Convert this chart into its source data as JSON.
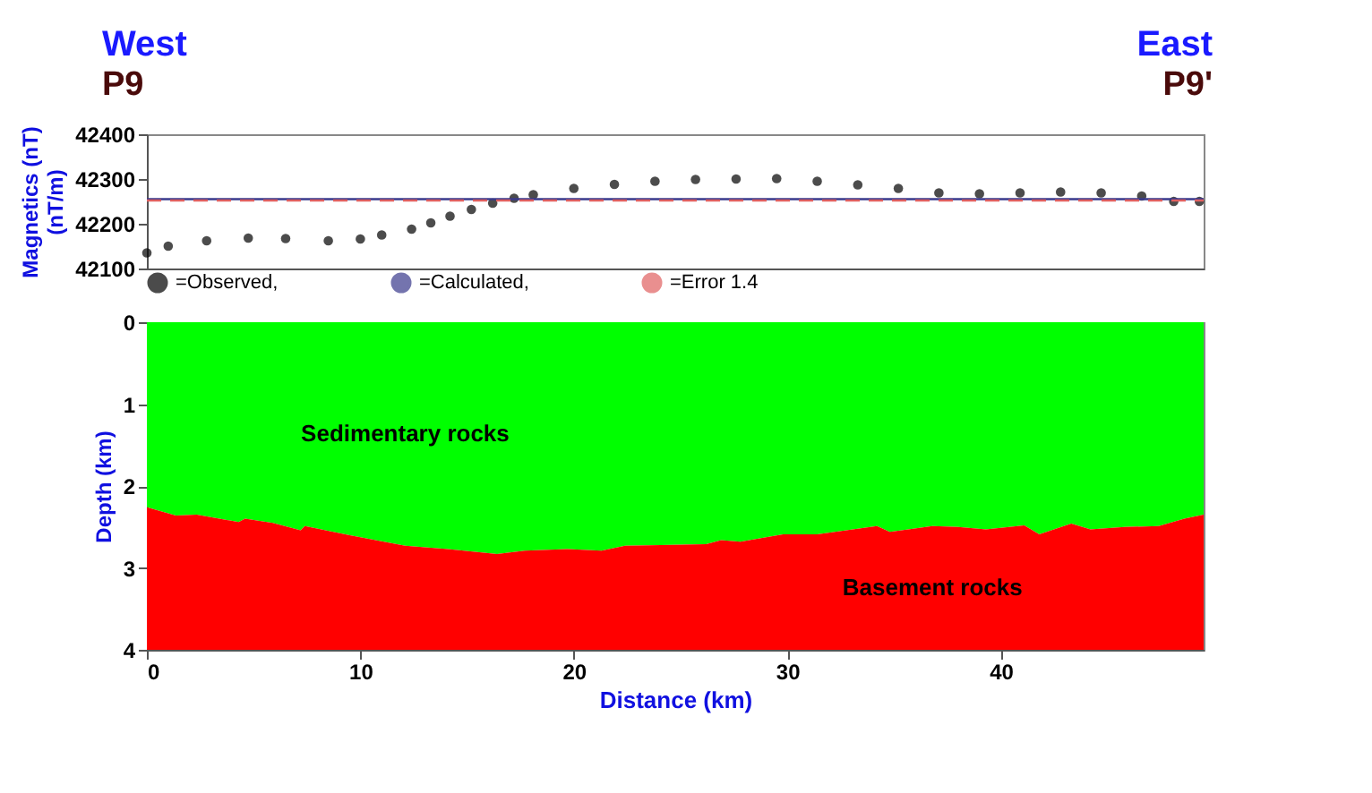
{
  "chart_data": [
    {
      "type": "scatter",
      "ylabel": "Magnetics (nT)\n(nT/m)",
      "annotations": [
        "West",
        "East",
        "P9",
        "P9'"
      ],
      "xlim": [
        0,
        49.5
      ],
      "ylim": [
        42100,
        42400
      ],
      "yticks": [
        42100,
        42200,
        42300,
        42400
      ],
      "tick_labels": "y",
      "grid": false,
      "legend": "bottom",
      "series": [
        {
          "name": "=Observed,",
          "type": "scatter",
          "marker": "circle",
          "color": "#000000",
          "x": [
            0,
            1,
            2.8,
            4.75,
            6.5,
            8.5,
            10,
            11,
            12.4,
            13.3,
            14.2,
            15.2,
            16.2,
            17.2,
            18.1,
            20,
            21.9,
            23.8,
            25.7,
            27.6,
            29.5,
            31.4,
            33.3,
            35.2,
            37.1,
            39,
            40.9,
            42.8,
            44.7,
            46.6,
            48.1,
            49.3
          ],
          "values": [
            42135,
            42150,
            42162,
            42168,
            42167,
            42162,
            42166,
            42175,
            42188,
            42202,
            42217,
            42232,
            42246,
            42257,
            42265,
            42279,
            42288,
            42295,
            42299,
            42300,
            42301,
            42295,
            42287,
            42279,
            42269,
            42267,
            42269,
            42271,
            42269,
            42262,
            42250,
            42250
          ]
        },
        {
          "name": "=Calculated,",
          "type": "line",
          "line_style": "solid",
          "color": "#3a3a8c",
          "x": [
            0,
            49.5
          ],
          "values": [
            42255,
            42255
          ]
        },
        {
          "name": "=Error 1.4",
          "type": "line",
          "line_style": "dashed",
          "color": "#e06060",
          "x": [
            0,
            49.5
          ],
          "values": [
            42252,
            42252
          ]
        }
      ]
    },
    {
      "type": "area",
      "stacked": true,
      "xlabel": "Distance (km)",
      "ylabel": "Depth (km)",
      "xlim": [
        0,
        49.5
      ],
      "xticks": [
        0,
        10,
        20,
        30,
        40
      ],
      "ylim": [
        4,
        0
      ],
      "yticks": [
        0,
        1,
        2,
        3,
        4
      ],
      "grid": false,
      "legend": false,
      "x": [
        0,
        1.36,
        2.34,
        4.3,
        4.6,
        5.9,
        7.2,
        7.4,
        9.5,
        12.1,
        14.1,
        16.4,
        17.7,
        19.7,
        21.3,
        22.4,
        26.2,
        26.9,
        27.8,
        29.8,
        31.4,
        34.2,
        34.8,
        36.8,
        38,
        39.3,
        41.1,
        41.8,
        43.3,
        44.2,
        45.8,
        47.4,
        48.6,
        49.5
      ],
      "series": [
        {
          "name": "Sedimentary rocks",
          "color": "#00ff00",
          "values": [
            2.26,
            2.36,
            2.35,
            2.44,
            2.4,
            2.45,
            2.54,
            2.49,
            2.6,
            2.73,
            2.77,
            2.83,
            2.79,
            2.77,
            2.79,
            2.73,
            2.71,
            2.66,
            2.68,
            2.59,
            2.59,
            2.49,
            2.56,
            2.49,
            2.5,
            2.53,
            2.48,
            2.59,
            2.46,
            2.53,
            2.5,
            2.49,
            2.4,
            2.35
          ]
        },
        {
          "name": "Basement rocks",
          "color": "#ff0000",
          "values": [
            1.74,
            1.64,
            1.65,
            1.56,
            1.6,
            1.55,
            1.46,
            1.51,
            1.4,
            1.27,
            1.23,
            1.17,
            1.21,
            1.23,
            1.21,
            1.27,
            1.29,
            1.34,
            1.32,
            1.41,
            1.41,
            1.51,
            1.44,
            1.51,
            1.5,
            1.47,
            1.52,
            1.41,
            1.54,
            1.47,
            1.5,
            1.51,
            1.6,
            1.65
          ]
        }
      ]
    }
  ]
}
